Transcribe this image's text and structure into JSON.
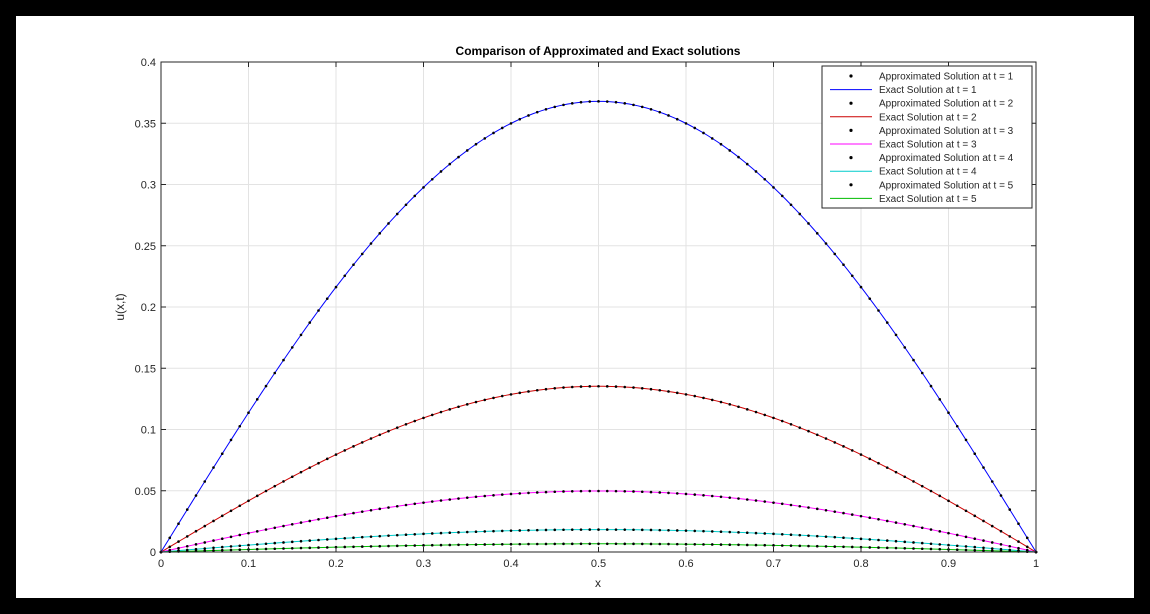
{
  "chart_data": {
    "type": "line",
    "title": "Comparison of Approximated and Exact solutions",
    "xlabel": "x",
    "ylabel": "u(x,t)",
    "xlim": [
      0,
      1
    ],
    "ylim": [
      0,
      0.4
    ],
    "xticks": [
      0,
      0.1,
      0.2,
      0.3,
      0.4,
      0.5,
      0.6,
      0.7,
      0.8,
      0.9,
      1
    ],
    "xtick_labels": [
      "0",
      "0.1",
      "0.2",
      "0.3",
      "0.4",
      "0.5",
      "0.6",
      "0.7",
      "0.8",
      "0.9",
      "1"
    ],
    "yticks": [
      0,
      0.05,
      0.1,
      0.15,
      0.2,
      0.25,
      0.3,
      0.35,
      0.4
    ],
    "ytick_labels": [
      "0",
      "0.05",
      "0.1",
      "0.15",
      "0.2",
      "0.25",
      "0.3",
      "0.35",
      "0.4"
    ],
    "grid": true,
    "legend_position": "top-right",
    "x": [
      0,
      0.05,
      0.1,
      0.15,
      0.2,
      0.25,
      0.3,
      0.35,
      0.4,
      0.45,
      0.5,
      0.55,
      0.6,
      0.65,
      0.7,
      0.75,
      0.8,
      0.85,
      0.9,
      0.95,
      1
    ],
    "series": [
      {
        "name": "Approximated Solution at t = 1",
        "style": "markers",
        "color": "#000000",
        "values": [
          0,
          0.0575,
          0.1137,
          0.167,
          0.2162,
          0.2601,
          0.2976,
          0.3277,
          0.3498,
          0.3633,
          0.3679,
          0.3633,
          0.3498,
          0.3277,
          0.2976,
          0.2601,
          0.2162,
          0.167,
          0.1137,
          0.0575,
          0
        ]
      },
      {
        "name": "Exact Solution at t = 1",
        "style": "line",
        "color": "#0000ff",
        "values": [
          0,
          0.0575,
          0.1137,
          0.167,
          0.2162,
          0.2601,
          0.2976,
          0.3277,
          0.3498,
          0.3633,
          0.3679,
          0.3633,
          0.3498,
          0.3277,
          0.2976,
          0.2601,
          0.2162,
          0.167,
          0.1137,
          0.0575,
          0
        ]
      },
      {
        "name": "Approximated Solution at t = 2",
        "style": "markers",
        "color": "#000000",
        "values": [
          0,
          0.0212,
          0.0418,
          0.0614,
          0.0795,
          0.0957,
          0.1095,
          0.1206,
          0.1287,
          0.1337,
          0.1353,
          0.1337,
          0.1287,
          0.1206,
          0.1095,
          0.0957,
          0.0795,
          0.0614,
          0.0418,
          0.0212,
          0
        ]
      },
      {
        "name": "Exact Solution at t = 2",
        "style": "line",
        "color": "#cc0000",
        "values": [
          0,
          0.0212,
          0.0418,
          0.0614,
          0.0795,
          0.0957,
          0.1095,
          0.1206,
          0.1287,
          0.1337,
          0.1353,
          0.1337,
          0.1287,
          0.1206,
          0.1095,
          0.0957,
          0.0795,
          0.0614,
          0.0418,
          0.0212,
          0
        ]
      },
      {
        "name": "Approximated Solution at t = 3",
        "style": "markers",
        "color": "#000000",
        "values": [
          0,
          0.0078,
          0.0154,
          0.0226,
          0.0293,
          0.0352,
          0.0403,
          0.0444,
          0.0474,
          0.0492,
          0.0498,
          0.0492,
          0.0474,
          0.0444,
          0.0403,
          0.0352,
          0.0293,
          0.0226,
          0.0154,
          0.0078,
          0
        ]
      },
      {
        "name": "Exact Solution at t = 3",
        "style": "line",
        "color": "#ff00ff",
        "values": [
          0,
          0.0078,
          0.0154,
          0.0226,
          0.0293,
          0.0352,
          0.0403,
          0.0444,
          0.0474,
          0.0492,
          0.0498,
          0.0492,
          0.0474,
          0.0444,
          0.0403,
          0.0352,
          0.0293,
          0.0226,
          0.0154,
          0.0078,
          0
        ]
      },
      {
        "name": "Approximated Solution at t = 4",
        "style": "markers",
        "color": "#000000",
        "values": [
          0,
          0.0029,
          0.0057,
          0.0083,
          0.0108,
          0.013,
          0.0148,
          0.0163,
          0.0174,
          0.0181,
          0.0183,
          0.0181,
          0.0174,
          0.0163,
          0.0148,
          0.013,
          0.0108,
          0.0083,
          0.0057,
          0.0029,
          0
        ]
      },
      {
        "name": "Exact Solution at t = 4",
        "style": "line",
        "color": "#00cccc",
        "values": [
          0,
          0.0029,
          0.0057,
          0.0083,
          0.0108,
          0.013,
          0.0148,
          0.0163,
          0.0174,
          0.0181,
          0.0183,
          0.0181,
          0.0174,
          0.0163,
          0.0148,
          0.013,
          0.0108,
          0.0083,
          0.0057,
          0.0029,
          0
        ]
      },
      {
        "name": "Approximated Solution at t = 5",
        "style": "markers",
        "color": "#000000",
        "values": [
          0,
          0.0011,
          0.0021,
          0.0031,
          0.004,
          0.0048,
          0.0055,
          0.006,
          0.0064,
          0.0067,
          0.0067,
          0.0067,
          0.0064,
          0.006,
          0.0055,
          0.0048,
          0.004,
          0.0031,
          0.0021,
          0.0011,
          0
        ]
      },
      {
        "name": "Exact Solution at t = 5",
        "style": "line",
        "color": "#00bb00",
        "values": [
          0,
          0.0011,
          0.0021,
          0.0031,
          0.004,
          0.0048,
          0.0055,
          0.006,
          0.0064,
          0.0067,
          0.0067,
          0.0067,
          0.0064,
          0.006,
          0.0055,
          0.0048,
          0.004,
          0.0031,
          0.0021,
          0.0011,
          0
        ]
      }
    ]
  }
}
